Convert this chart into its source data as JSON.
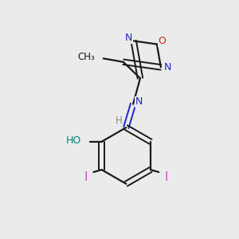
{
  "background_color": "#ebebeb",
  "bond_color": "#1a1a1a",
  "N_color": "#2222cc",
  "O_color": "#cc2222",
  "I_color": "#dd44dd",
  "OH_color": "#008080",
  "H_color": "#888888",
  "figsize": [
    3.0,
    3.0
  ],
  "dpi": 100,
  "xlim": [
    0,
    10
  ],
  "ylim": [
    0,
    10
  ]
}
